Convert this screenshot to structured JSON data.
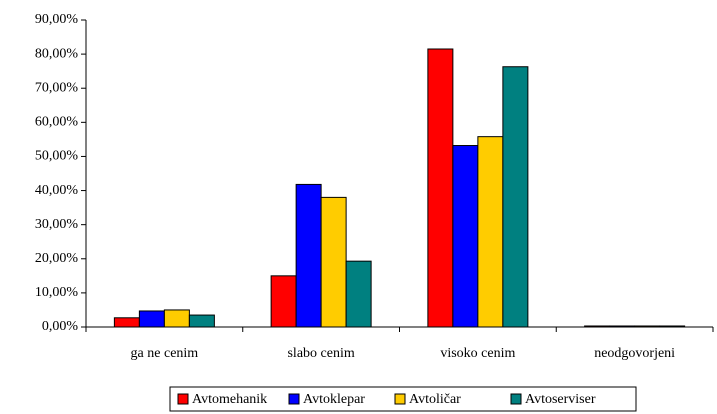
{
  "chart_data": {
    "type": "bar",
    "categories": [
      "ga ne cenim",
      "slabo cenim",
      "visoko cenim",
      "neodgovorjeni"
    ],
    "series": [
      {
        "name": "Avtomehanik",
        "color": "#ff0000",
        "values": [
          2.7,
          15.0,
          81.5,
          0.3
        ]
      },
      {
        "name": "Avtoklepar",
        "color": "#0000ff",
        "values": [
          4.7,
          41.8,
          53.2,
          0.3
        ]
      },
      {
        "name": "Avtoličar",
        "color": "#ffcc00",
        "values": [
          5.0,
          38.0,
          55.8,
          0.3
        ]
      },
      {
        "name": "Avtoserviser",
        "color": "#008080",
        "values": [
          3.5,
          19.3,
          76.3,
          0.3
        ]
      }
    ],
    "ylim": [
      0,
      90
    ],
    "yticks": [
      {
        "value": 0,
        "label": "0,00%"
      },
      {
        "value": 10,
        "label": "10,00%"
      },
      {
        "value": 20,
        "label": "20,00%"
      },
      {
        "value": 30,
        "label": "30,00%"
      },
      {
        "value": 40,
        "label": "40,00%"
      },
      {
        "value": 50,
        "label": "50,00%"
      },
      {
        "value": 60,
        "label": "60,00%"
      },
      {
        "value": 70,
        "label": "70,00%"
      },
      {
        "value": 80,
        "label": "80,00%"
      },
      {
        "value": 90,
        "label": "90,00%"
      }
    ],
    "grid": false,
    "legend": "bottom"
  }
}
